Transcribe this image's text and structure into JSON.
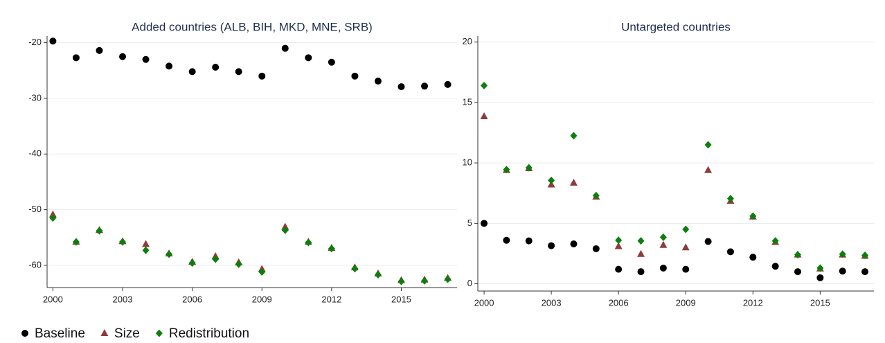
{
  "chart_data": [
    {
      "type": "scatter",
      "title": "Added countries (ALB, BIH, MKD, MNE, SRB)",
      "x": [
        2000,
        2001,
        2002,
        2003,
        2004,
        2005,
        2006,
        2007,
        2008,
        2009,
        2010,
        2011,
        2012,
        2013,
        2014,
        2015,
        2016,
        2017
      ],
      "xlim": [
        1999.75,
        2017.4
      ],
      "xticks": [
        2000,
        2003,
        2006,
        2009,
        2012,
        2015
      ],
      "ylim": [
        -64,
        -18.8
      ],
      "yticks": [
        -60,
        -50,
        -40,
        -30,
        -20
      ],
      "grid": true,
      "legend": "bottom-left",
      "series": [
        {
          "name": "Baseline",
          "color": "#000000",
          "marker": "circle",
          "values": [
            -19.7,
            -22.7,
            -21.4,
            -22.5,
            -23.0,
            -24.2,
            -25.2,
            -24.4,
            -25.2,
            -26.0,
            -21.0,
            -22.7,
            -23.5,
            -26.0,
            -26.9,
            -27.9,
            -27.8,
            -27.5
          ]
        },
        {
          "name": "Size",
          "color": "#8f3b3b",
          "marker": "triangle",
          "values": [
            -50.9,
            -55.8,
            -53.7,
            -55.7,
            -56.2,
            -57.9,
            -59.4,
            -58.4,
            -59.5,
            -60.7,
            -53.1,
            -55.8,
            -56.9,
            -60.4,
            -61.5,
            -62.7,
            -62.6,
            -62.3
          ]
        },
        {
          "name": "Redistribution",
          "color": "#0b7f0b",
          "marker": "diamond",
          "values": [
            -51.5,
            -55.8,
            -53.8,
            -55.8,
            -57.3,
            -58.0,
            -59.6,
            -58.9,
            -59.8,
            -61.2,
            -53.7,
            -55.9,
            -57.0,
            -60.6,
            -61.7,
            -62.9,
            -62.8,
            -62.5
          ]
        }
      ]
    },
    {
      "type": "scatter",
      "title": "Untargeted countries",
      "x": [
        2000,
        2001,
        2002,
        2003,
        2004,
        2005,
        2006,
        2007,
        2008,
        2009,
        2010,
        2011,
        2012,
        2013,
        2014,
        2015,
        2016,
        2017
      ],
      "xlim": [
        1999.72,
        2017.4
      ],
      "xticks": [
        2000,
        2003,
        2006,
        2009,
        2012,
        2015
      ],
      "ylim": [
        -0.6,
        20.5
      ],
      "yticks": [
        0,
        5,
        10,
        15,
        20
      ],
      "grid": true,
      "series": [
        {
          "name": "Baseline",
          "color": "#000000",
          "marker": "circle",
          "values": [
            5.0,
            3.6,
            3.55,
            3.15,
            3.3,
            2.9,
            1.2,
            1.0,
            1.3,
            1.2,
            3.5,
            2.65,
            2.2,
            1.45,
            1.0,
            0.5,
            1.05,
            1.0
          ]
        },
        {
          "name": "Size",
          "color": "#8f3b3b",
          "marker": "triangle",
          "values": [
            13.85,
            9.4,
            9.55,
            8.2,
            8.35,
            7.2,
            3.1,
            2.45,
            3.2,
            3.0,
            9.4,
            6.85,
            5.55,
            3.45,
            2.4,
            1.25,
            2.4,
            2.3
          ]
        },
        {
          "name": "Redistribution",
          "color": "#0b7f0b",
          "marker": "diamond",
          "values": [
            16.4,
            9.45,
            9.6,
            8.55,
            12.25,
            7.3,
            3.6,
            3.55,
            3.85,
            4.5,
            11.5,
            7.05,
            5.6,
            3.55,
            2.4,
            1.3,
            2.45,
            2.35
          ]
        }
      ]
    }
  ]
}
